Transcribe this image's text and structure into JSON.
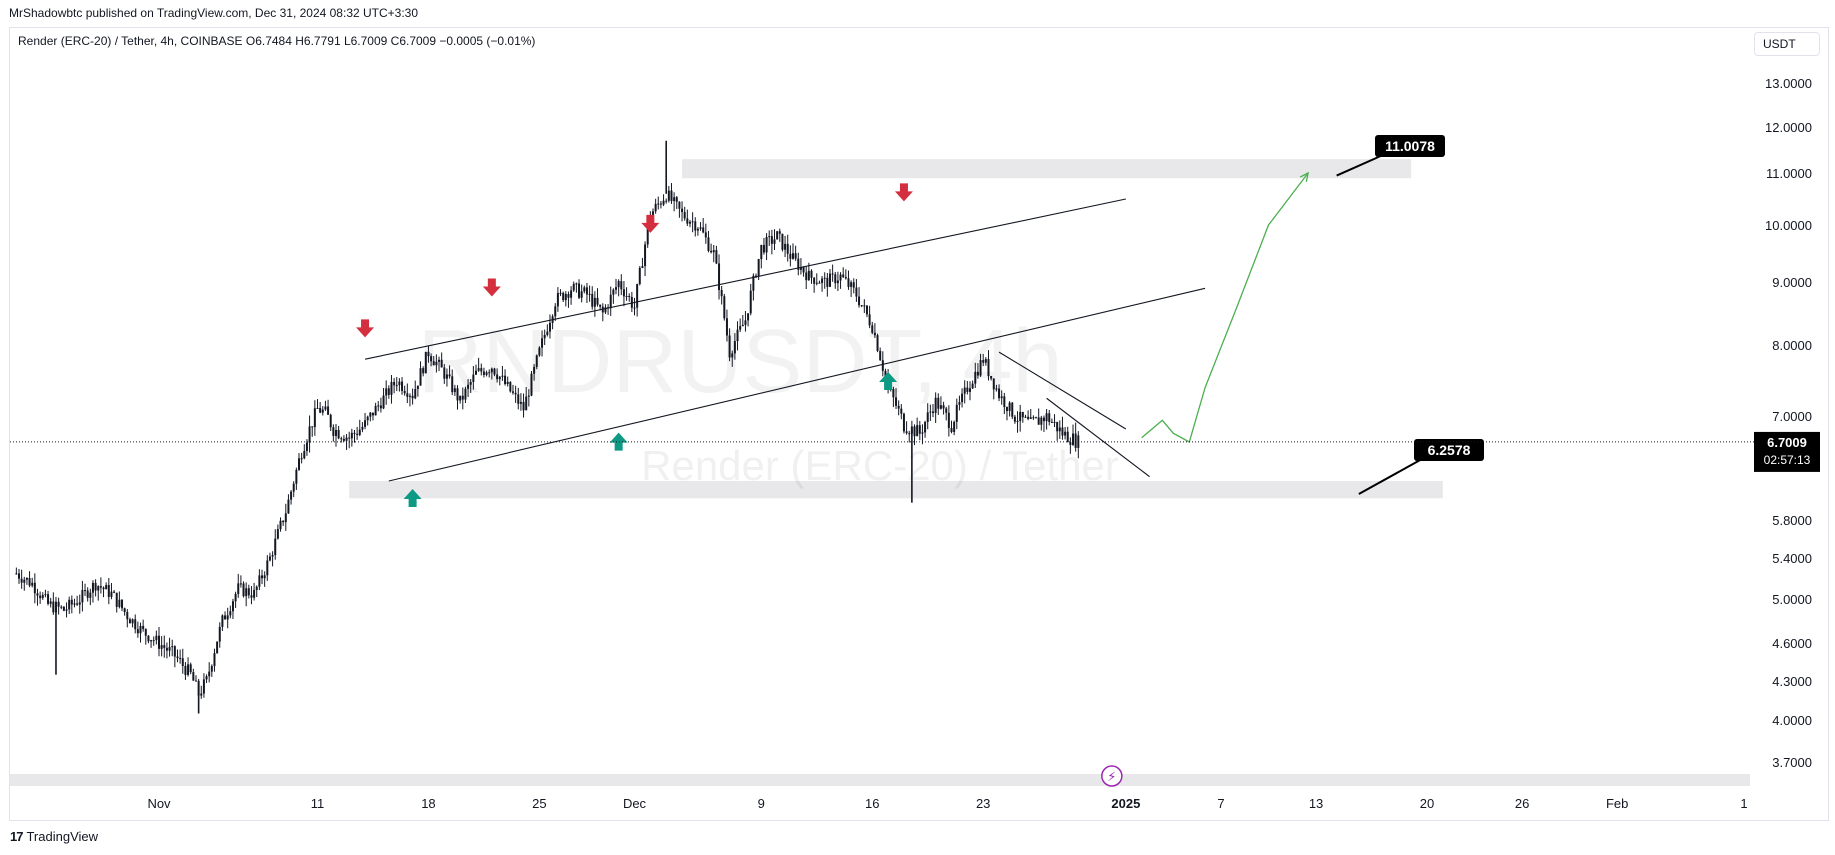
{
  "header": {
    "published": "MrShadowbtc published on TradingView.com, Dec 31, 2024 08:32 UTC+3:30",
    "symbol_line": "Render (ERC-20) / Tether, 4h, COINBASE  O6.7484  H6.7791  L6.7009  C6.7009  −0.0005 (−0.01%)",
    "currency": "USDT"
  },
  "watermark": {
    "symbol": "RNDRUSDT, 4h",
    "description": "Render (ERC-20) / Tether"
  },
  "footer": {
    "brand": "TradingView"
  },
  "colors": {
    "candle": "#131722",
    "down_arrow": "#d32f3e",
    "up_arrow": "#0d9a84",
    "projection": "#4caf50",
    "zone": "#e8e8ea",
    "label_bg": "#000000"
  },
  "chart_data": {
    "type": "candlestick",
    "interval": "4h",
    "exchange": "COINBASE",
    "last_price": "6.7009",
    "countdown": "02:57:13",
    "y_ticks": [
      "13.0000",
      "12.0000",
      "11.0000",
      "10.0000",
      "9.0000",
      "8.0000",
      "7.0000",
      "5.8000",
      "5.4000",
      "5.0000",
      "4.6000",
      "4.3000",
      "4.0000",
      "3.7000"
    ],
    "y_tick_values": [
      13,
      12,
      11,
      10,
      9,
      8,
      7,
      5.8,
      5.4,
      5.0,
      4.6,
      4.3,
      4.0,
      3.7
    ],
    "x_ticks": [
      {
        "label": "Nov",
        "day": 0,
        "bold": false
      },
      {
        "label": "11",
        "day": 10,
        "bold": false
      },
      {
        "label": "18",
        "day": 17,
        "bold": false
      },
      {
        "label": "25",
        "day": 24,
        "bold": false
      },
      {
        "label": "Dec",
        "day": 30,
        "bold": false
      },
      {
        "label": "9",
        "day": 38,
        "bold": false
      },
      {
        "label": "16",
        "day": 45,
        "bold": false
      },
      {
        "label": "23",
        "day": 52,
        "bold": false
      },
      {
        "label": "2025",
        "day": 61,
        "bold": true
      },
      {
        "label": "7",
        "day": 67,
        "bold": false
      },
      {
        "label": "13",
        "day": 73,
        "bold": false
      },
      {
        "label": "20",
        "day": 80,
        "bold": false
      },
      {
        "label": "26",
        "day": 86,
        "bold": false
      },
      {
        "label": "Feb",
        "day": 92,
        "bold": false
      },
      {
        "label": "1",
        "day": 100,
        "bold": false
      }
    ],
    "price_path": [
      [
        -9,
        5.25
      ],
      [
        -8,
        5.15
      ],
      [
        -7,
        4.95
      ],
      [
        -6,
        4.9
      ],
      [
        -5,
        5.0
      ],
      [
        -4,
        5.15
      ],
      [
        -3,
        5.05
      ],
      [
        -2,
        4.85
      ],
      [
        -1,
        4.7
      ],
      [
        0,
        4.6
      ],
      [
        1,
        4.5
      ],
      [
        2,
        4.35
      ],
      [
        2.5,
        4.2
      ],
      [
        3,
        4.3
      ],
      [
        4,
        4.8
      ],
      [
        5,
        5.1
      ],
      [
        6,
        5.05
      ],
      [
        7,
        5.4
      ],
      [
        8,
        5.9
      ],
      [
        9,
        6.6
      ],
      [
        10,
        7.1
      ],
      [
        10.5,
        7.05
      ],
      [
        11,
        6.85
      ],
      [
        12,
        6.75
      ],
      [
        13,
        6.9
      ],
      [
        14,
        7.2
      ],
      [
        15,
        7.5
      ],
      [
        16,
        7.3
      ],
      [
        17,
        7.9
      ],
      [
        18,
        7.6
      ],
      [
        19,
        7.2
      ],
      [
        20,
        7.6
      ],
      [
        21,
        7.7
      ],
      [
        22,
        7.4
      ],
      [
        23,
        7.1
      ],
      [
        24,
        7.9
      ],
      [
        25,
        8.7
      ],
      [
        26,
        8.9
      ],
      [
        27,
        8.8
      ],
      [
        28,
        8.5
      ],
      [
        29,
        9.0
      ],
      [
        30,
        8.6
      ],
      [
        31,
        10.2
      ],
      [
        32,
        10.6
      ],
      [
        33,
        10.2
      ],
      [
        34,
        10.0
      ],
      [
        35,
        9.5
      ],
      [
        36,
        7.9
      ],
      [
        37,
        8.4
      ],
      [
        38,
        9.6
      ],
      [
        39,
        9.8
      ],
      [
        40,
        9.4
      ],
      [
        41,
        9.1
      ],
      [
        42,
        9.0
      ],
      [
        43,
        9.1
      ],
      [
        44,
        8.8
      ],
      [
        45,
        8.3
      ],
      [
        46,
        7.4
      ],
      [
        47,
        6.9
      ],
      [
        48,
        6.8
      ],
      [
        49,
        7.2
      ],
      [
        50,
        6.9
      ],
      [
        51,
        7.4
      ],
      [
        52,
        7.8
      ],
      [
        53,
        7.3
      ],
      [
        54,
        7.0
      ],
      [
        55,
        6.9
      ],
      [
        56,
        7.0
      ],
      [
        57,
        6.8
      ],
      [
        58,
        6.7
      ]
    ],
    "wicks": [
      {
        "day": 32,
        "high": 11.7
      },
      {
        "day": 47.5,
        "low": 6.0
      },
      {
        "day": 2.5,
        "low": 4.05
      },
      {
        "day": -6.5,
        "low": 4.35
      }
    ],
    "annotations": {
      "resistance_label": "11.0078",
      "support_label": "6.2578",
      "resistance_zone": {
        "from_day": 33,
        "to_day": 79,
        "price_top": 11.3,
        "price_bottom": 10.9
      },
      "support_zone": {
        "from_day": 12,
        "to_day": 81,
        "price_top": 6.25,
        "price_bottom": 6.05
      },
      "channel_upper": [
        [
          13,
          7.8
        ],
        [
          61,
          10.5
        ]
      ],
      "channel_lower": [
        [
          14.5,
          6.25
        ],
        [
          66,
          8.9
        ]
      ],
      "wedge_upper": [
        [
          53,
          7.9
        ],
        [
          61,
          6.85
        ]
      ],
      "wedge_lower": [
        [
          56,
          7.25
        ],
        [
          62.5,
          6.3
        ]
      ],
      "down_arrows": [
        {
          "day": 13,
          "price": 8.2
        },
        {
          "day": 21,
          "price": 8.85
        },
        {
          "day": 31,
          "price": 9.95
        },
        {
          "day": 47,
          "price": 10.55
        }
      ],
      "up_arrows": [
        {
          "day": 16,
          "price": 6.1
        },
        {
          "day": 29,
          "price": 6.75
        },
        {
          "day": 46,
          "price": 7.55
        }
      ],
      "projection": [
        [
          62,
          6.75
        ],
        [
          63.3,
          6.95
        ],
        [
          64,
          6.8
        ],
        [
          65,
          6.7
        ],
        [
          66,
          7.4
        ],
        [
          68,
          8.6
        ],
        [
          70,
          10.0
        ],
        [
          72.5,
          11.0
        ]
      ]
    }
  }
}
